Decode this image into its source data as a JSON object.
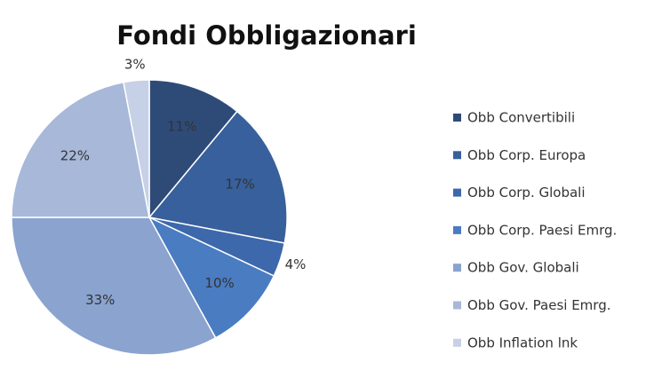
{
  "chart_data": {
    "type": "pie",
    "title": "Fondi Obbligazionari",
    "categories": [
      "Obb Convertibili",
      "Obb Corp. Europa",
      "Obb Corp. Globali",
      "Obb Corp. Paesi Emrg.",
      "Obb Gov. Globali",
      "Obb Gov. Paesi Emrg.",
      "Obb Inflation lnk"
    ],
    "values": [
      11,
      17,
      4,
      10,
      33,
      22,
      3
    ],
    "value_labels": [
      "11%",
      "17%",
      "4%",
      "10%",
      "33%",
      "22%",
      "3%"
    ],
    "colors": [
      "#2e4b78",
      "#37609c",
      "#3d68ab",
      "#4a7cc2",
      "#8aa3cf",
      "#a7b8d9",
      "#c6d0e6"
    ],
    "legend": "right"
  }
}
